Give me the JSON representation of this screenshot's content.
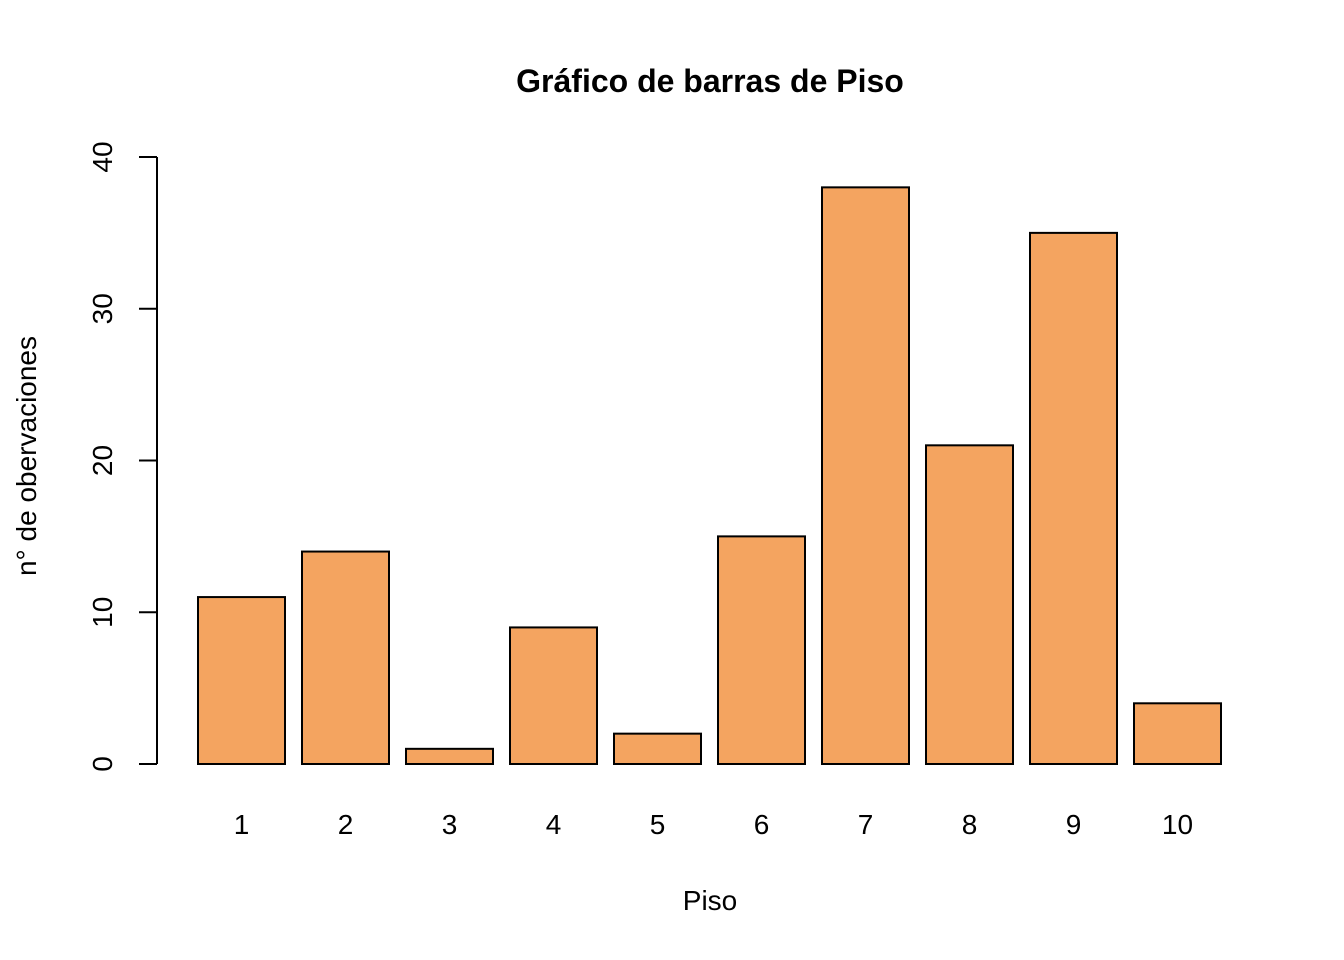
{
  "chart_data": {
    "type": "bar",
    "title": "Gráfico de barras de Piso",
    "xlabel": "Piso",
    "ylabel": "n° de obervaciones",
    "categories": [
      "1",
      "2",
      "3",
      "4",
      "5",
      "6",
      "7",
      "8",
      "9",
      "10"
    ],
    "values": [
      11,
      14,
      1,
      9,
      2,
      15,
      38,
      21,
      35,
      4
    ],
    "ylim": [
      0,
      40
    ],
    "yticks": [
      0,
      10,
      20,
      30,
      40
    ],
    "bar_color": "#F4A460",
    "bar_border_color": "#000000",
    "grid": false,
    "legend": "none"
  }
}
